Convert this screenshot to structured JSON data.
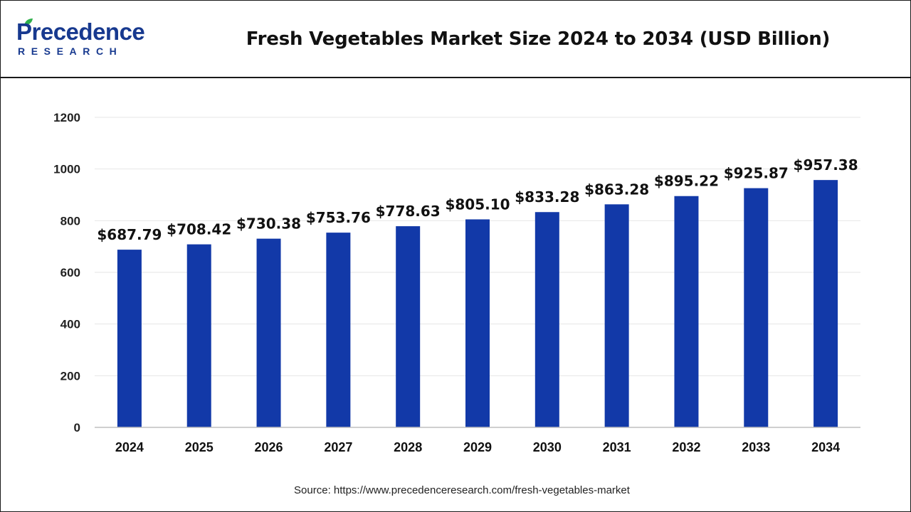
{
  "brand": {
    "name": "Precedence",
    "sub": "RESEARCH",
    "color": "#17398f",
    "leaf_color": "#2fb04b"
  },
  "source_text": "Source: https://www.precedenceresearch.com/fresh-vegetables-market",
  "chart_data": {
    "type": "bar",
    "title": "Fresh Vegetables Market Size 2024 to 2034 (USD Billion)",
    "xlabel": "",
    "ylabel": "",
    "categories": [
      "2024",
      "2025",
      "2026",
      "2027",
      "2028",
      "2029",
      "2030",
      "2031",
      "2032",
      "2033",
      "2034"
    ],
    "values": [
      687.79,
      708.42,
      730.38,
      753.76,
      778.63,
      805.1,
      833.28,
      863.28,
      895.22,
      925.87,
      957.38
    ],
    "value_labels": [
      "$687.79",
      "$708.42",
      "$730.38",
      "$753.76",
      "$778.63",
      "$805.10",
      "$833.28",
      "$863.28",
      "$895.22",
      "$925.87",
      "$957.38"
    ],
    "yticks": [
      0,
      200,
      400,
      600,
      800,
      1000,
      1200
    ],
    "ylim": [
      0,
      1200
    ],
    "grid": true,
    "legend": "none",
    "bar_color": "#1239a8"
  }
}
